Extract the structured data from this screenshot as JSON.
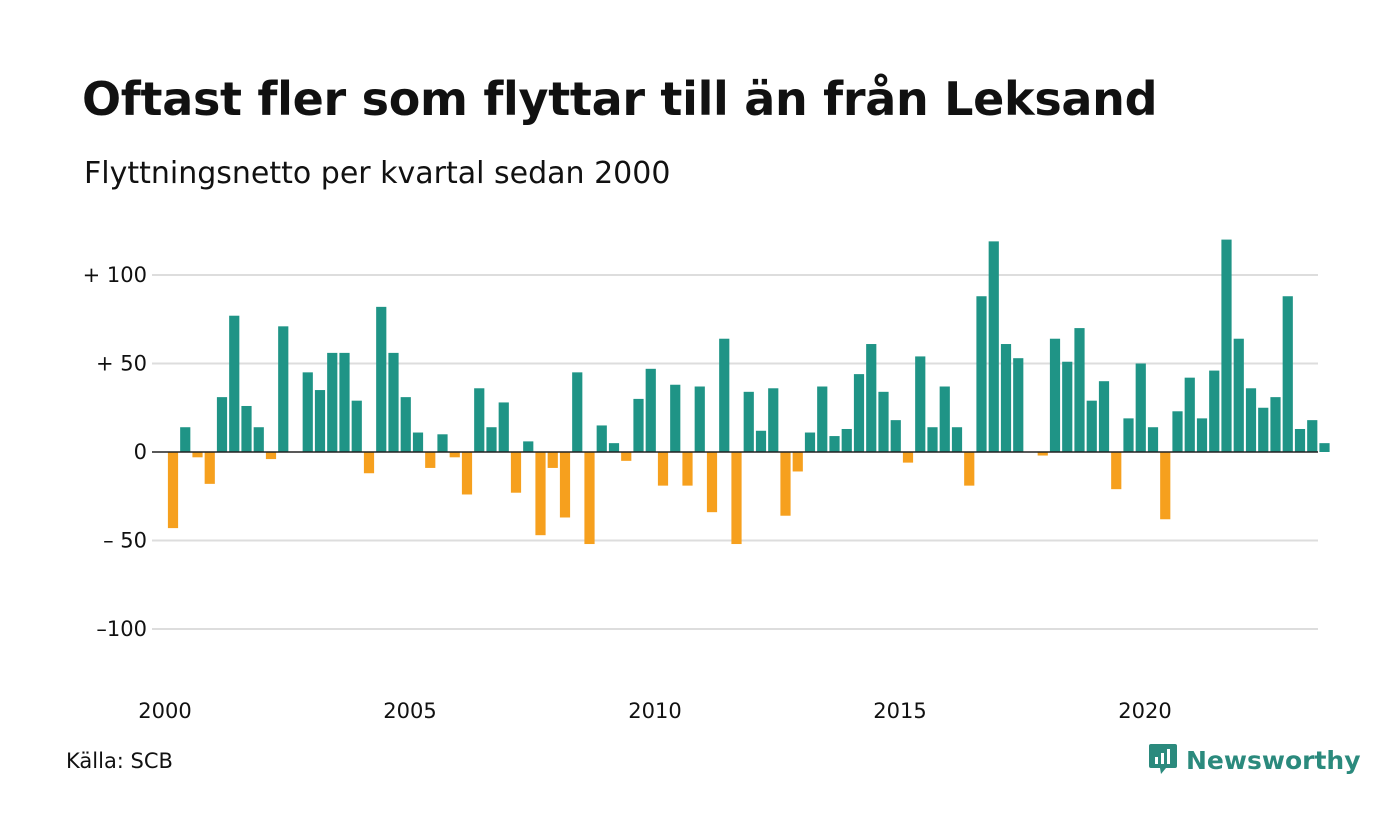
{
  "title": "Oftast fler som flyttar till än från Leksand",
  "subtitle": "Flyttningsnetto per kvartal sedan 2000",
  "source": "Källa: SCB",
  "brand": {
    "name": "Newsworthy",
    "icon": "newsworthy-logo-icon"
  },
  "colors": {
    "positive": "#1f9486",
    "negative": "#f6a01e",
    "grid": "#dddddd",
    "zero": "#222222"
  },
  "chart_data": {
    "type": "bar",
    "title": "Oftast fler som flyttar till än från Leksand",
    "subtitle": "Flyttningsnetto per kvartal sedan 2000",
    "xlabel": "",
    "ylabel": "",
    "ylim": [
      -125,
      125
    ],
    "grid": true,
    "yticks": [
      100,
      50,
      0,
      -50,
      -100
    ],
    "ytick_labels": [
      "+ 100",
      "+  50",
      "0",
      "– 50",
      "–100"
    ],
    "xticks": [
      "2000",
      "2005",
      "2010",
      "2015",
      "2020"
    ],
    "x_start_year": 2000,
    "series": [
      {
        "values": [
          -43,
          14,
          -3,
          -18,
          31,
          77,
          26,
          14,
          -4,
          71,
          0,
          45,
          35,
          56,
          56,
          29,
          -12,
          82,
          56,
          31,
          11,
          -9,
          10,
          -3,
          -24,
          36,
          14,
          28,
          -23,
          6,
          -47,
          -9,
          -37,
          45,
          -52,
          15,
          5,
          -5,
          30,
          47,
          -19,
          38,
          -19,
          37,
          -34,
          64,
          -52,
          34,
          12,
          36,
          -36,
          -11,
          11,
          37,
          9,
          13,
          44,
          61,
          34,
          18,
          -6,
          54,
          14,
          37,
          14,
          -19,
          88,
          119,
          61,
          53,
          0,
          -2,
          64,
          51,
          70,
          29,
          40,
          -21,
          19,
          50,
          14,
          -38,
          23,
          42,
          19,
          46,
          120,
          64,
          36,
          25,
          31,
          88,
          13,
          18,
          5
        ]
      }
    ]
  }
}
